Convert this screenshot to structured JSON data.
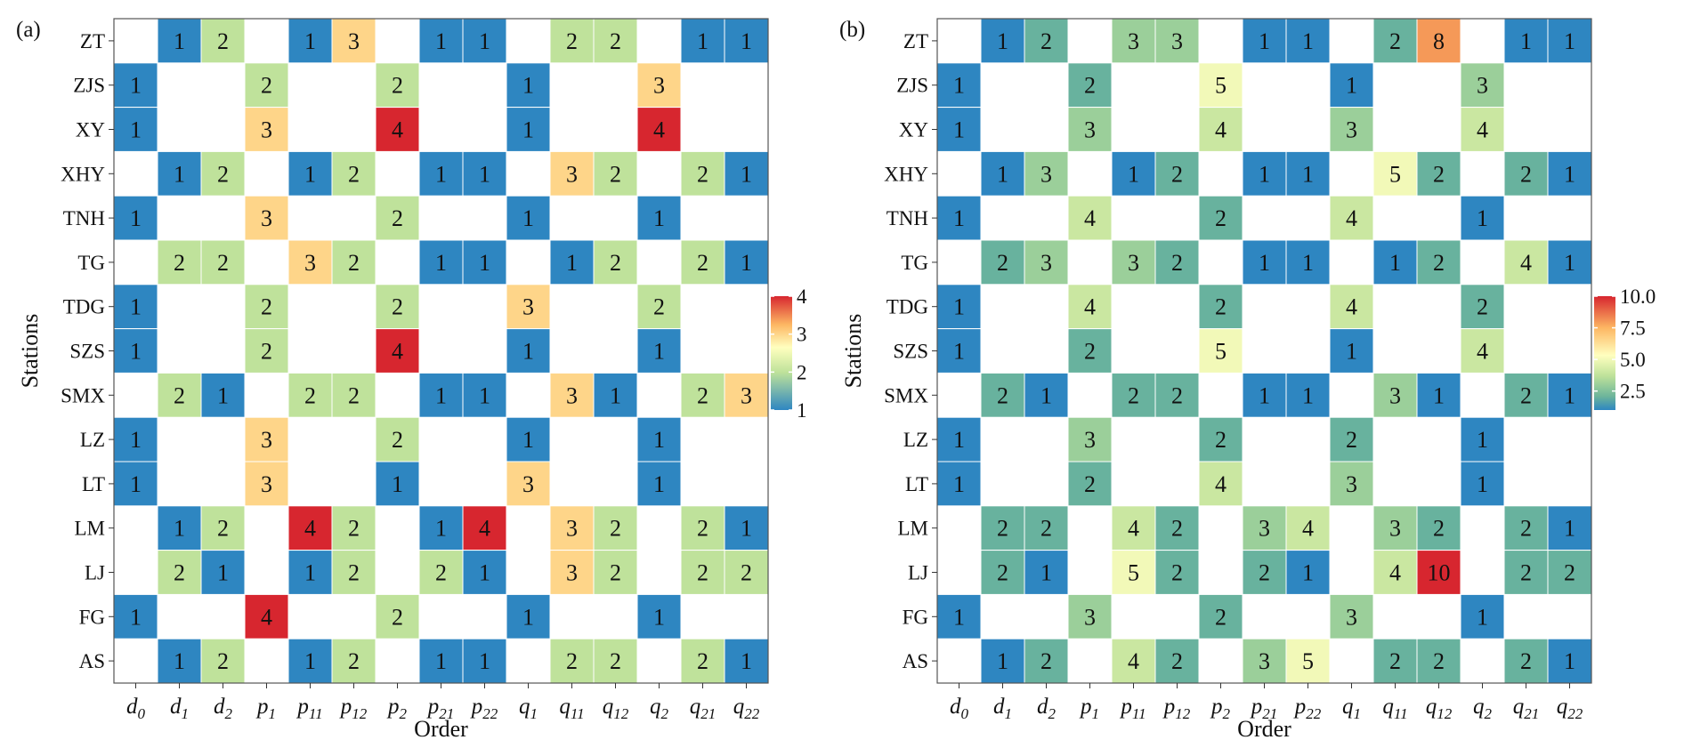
{
  "figure": {
    "ylabel": "Stations",
    "xlabel": "Order"
  },
  "chart_data": [
    {
      "type": "heatmap",
      "panel_label": "(a)",
      "xlabel": "Order",
      "ylabel": "Stations",
      "x_categories": [
        {
          "base": "d",
          "sub": "0"
        },
        {
          "base": "d",
          "sub": "1"
        },
        {
          "base": "d",
          "sub": "2"
        },
        {
          "base": "p",
          "sub": "1"
        },
        {
          "base": "p",
          "sub": "11"
        },
        {
          "base": "p",
          "sub": "12"
        },
        {
          "base": "p",
          "sub": "2"
        },
        {
          "base": "p",
          "sub": "21"
        },
        {
          "base": "p",
          "sub": "22"
        },
        {
          "base": "q",
          "sub": "1"
        },
        {
          "base": "q",
          "sub": "11"
        },
        {
          "base": "q",
          "sub": "12"
        },
        {
          "base": "q",
          "sub": "2"
        },
        {
          "base": "q",
          "sub": "21"
        },
        {
          "base": "q",
          "sub": "22"
        }
      ],
      "y_categories": [
        "ZT",
        "ZJS",
        "XY",
        "XHY",
        "TNH",
        "TG",
        "TDG",
        "SZS",
        "SMX",
        "LZ",
        "LT",
        "LM",
        "LJ",
        "FG",
        "AS"
      ],
      "values": [
        [
          null,
          1,
          2,
          null,
          1,
          3,
          null,
          1,
          1,
          null,
          2,
          2,
          null,
          1,
          1
        ],
        [
          1,
          null,
          null,
          2,
          null,
          null,
          2,
          null,
          null,
          1,
          null,
          null,
          3,
          null,
          null
        ],
        [
          1,
          null,
          null,
          3,
          null,
          null,
          4,
          null,
          null,
          1,
          null,
          null,
          4,
          null,
          null
        ],
        [
          null,
          1,
          2,
          null,
          1,
          2,
          null,
          1,
          1,
          null,
          3,
          2,
          null,
          2,
          1
        ],
        [
          1,
          null,
          null,
          3,
          null,
          null,
          2,
          null,
          null,
          1,
          null,
          null,
          1,
          null,
          null
        ],
        [
          null,
          2,
          2,
          null,
          3,
          2,
          null,
          1,
          1,
          null,
          1,
          2,
          null,
          2,
          1
        ],
        [
          1,
          null,
          null,
          2,
          null,
          null,
          2,
          null,
          null,
          3,
          null,
          null,
          2,
          null,
          null
        ],
        [
          1,
          null,
          null,
          2,
          null,
          null,
          4,
          null,
          null,
          1,
          null,
          null,
          1,
          null,
          null
        ],
        [
          null,
          2,
          1,
          null,
          2,
          2,
          null,
          1,
          1,
          null,
          3,
          1,
          null,
          2,
          3
        ],
        [
          1,
          null,
          null,
          3,
          null,
          null,
          2,
          null,
          null,
          1,
          null,
          null,
          1,
          null,
          null
        ],
        [
          1,
          null,
          null,
          3,
          null,
          null,
          1,
          null,
          null,
          3,
          null,
          null,
          1,
          null,
          null
        ],
        [
          null,
          1,
          2,
          null,
          4,
          2,
          null,
          1,
          4,
          null,
          3,
          2,
          null,
          2,
          1
        ],
        [
          null,
          2,
          1,
          null,
          1,
          2,
          null,
          2,
          1,
          null,
          3,
          2,
          null,
          2,
          2
        ],
        [
          1,
          null,
          null,
          4,
          null,
          null,
          2,
          null,
          null,
          1,
          null,
          null,
          1,
          null,
          null
        ],
        [
          null,
          1,
          2,
          null,
          1,
          2,
          null,
          1,
          1,
          null,
          2,
          2,
          null,
          2,
          1
        ]
      ],
      "colorbar": {
        "range": [
          1,
          4
        ],
        "ticks": [
          "1",
          "2",
          "3",
          "4"
        ],
        "tick_values": [
          1,
          2,
          3,
          4
        ]
      },
      "colors": {
        "low": "#2E86C1",
        "lowmid": "#BEE29A",
        "mid": "#FFFFBF",
        "highmid": "#FDB763",
        "high": "#D7262F"
      },
      "grid": false
    },
    {
      "type": "heatmap",
      "panel_label": "(b)",
      "xlabel": "Order",
      "ylabel": "Stations",
      "x_categories": [
        {
          "base": "d",
          "sub": "0"
        },
        {
          "base": "d",
          "sub": "1"
        },
        {
          "base": "d",
          "sub": "2"
        },
        {
          "base": "p",
          "sub": "1"
        },
        {
          "base": "p",
          "sub": "11"
        },
        {
          "base": "p",
          "sub": "12"
        },
        {
          "base": "p",
          "sub": "2"
        },
        {
          "base": "p",
          "sub": "21"
        },
        {
          "base": "p",
          "sub": "22"
        },
        {
          "base": "q",
          "sub": "1"
        },
        {
          "base": "q",
          "sub": "11"
        },
        {
          "base": "q",
          "sub": "12"
        },
        {
          "base": "q",
          "sub": "2"
        },
        {
          "base": "q",
          "sub": "21"
        },
        {
          "base": "q",
          "sub": "22"
        }
      ],
      "y_categories": [
        "ZT",
        "ZJS",
        "XY",
        "XHY",
        "TNH",
        "TG",
        "TDG",
        "SZS",
        "SMX",
        "LZ",
        "LT",
        "LM",
        "LJ",
        "FG",
        "AS"
      ],
      "values": [
        [
          null,
          1,
          2,
          null,
          3,
          3,
          null,
          1,
          1,
          null,
          2,
          8,
          null,
          1,
          1
        ],
        [
          1,
          null,
          null,
          2,
          null,
          null,
          5,
          null,
          null,
          1,
          null,
          null,
          3,
          null,
          null
        ],
        [
          1,
          null,
          null,
          3,
          null,
          null,
          4,
          null,
          null,
          3,
          null,
          null,
          4,
          null,
          null
        ],
        [
          null,
          1,
          3,
          null,
          1,
          2,
          null,
          1,
          1,
          null,
          5,
          2,
          null,
          2,
          1
        ],
        [
          1,
          null,
          null,
          4,
          null,
          null,
          2,
          null,
          null,
          4,
          null,
          null,
          1,
          null,
          null
        ],
        [
          null,
          2,
          3,
          null,
          3,
          2,
          null,
          1,
          1,
          null,
          1,
          2,
          null,
          4,
          1
        ],
        [
          1,
          null,
          null,
          4,
          null,
          null,
          2,
          null,
          null,
          4,
          null,
          null,
          2,
          null,
          null
        ],
        [
          1,
          null,
          null,
          2,
          null,
          null,
          5,
          null,
          null,
          1,
          null,
          null,
          4,
          null,
          null
        ],
        [
          null,
          2,
          1,
          null,
          2,
          2,
          null,
          1,
          1,
          null,
          3,
          1,
          null,
          2,
          1
        ],
        [
          1,
          null,
          null,
          3,
          null,
          null,
          2,
          null,
          null,
          2,
          null,
          null,
          1,
          null,
          null
        ],
        [
          1,
          null,
          null,
          2,
          null,
          null,
          4,
          null,
          null,
          3,
          null,
          null,
          1,
          null,
          null
        ],
        [
          null,
          2,
          2,
          null,
          4,
          2,
          null,
          3,
          4,
          null,
          3,
          2,
          null,
          2,
          1
        ],
        [
          null,
          2,
          1,
          null,
          5,
          2,
          null,
          2,
          1,
          null,
          4,
          10,
          null,
          2,
          2
        ],
        [
          1,
          null,
          null,
          3,
          null,
          null,
          2,
          null,
          null,
          3,
          null,
          null,
          1,
          null,
          null
        ],
        [
          null,
          1,
          2,
          null,
          4,
          2,
          null,
          3,
          5,
          null,
          2,
          2,
          null,
          2,
          1
        ]
      ],
      "colorbar": {
        "range": [
          1,
          10
        ],
        "ticks": [
          "2.5",
          "5.0",
          "7.5",
          "10.0"
        ],
        "tick_values": [
          2.5,
          5.0,
          7.5,
          10.0
        ]
      },
      "colors": {
        "low": "#2E86C1",
        "lowmid": "#6DB59B",
        "mid": "#BEE29A",
        "midhigh": "#FFFFBF",
        "highmid": "#FDB763",
        "high": "#D7262F"
      },
      "grid": false
    }
  ]
}
